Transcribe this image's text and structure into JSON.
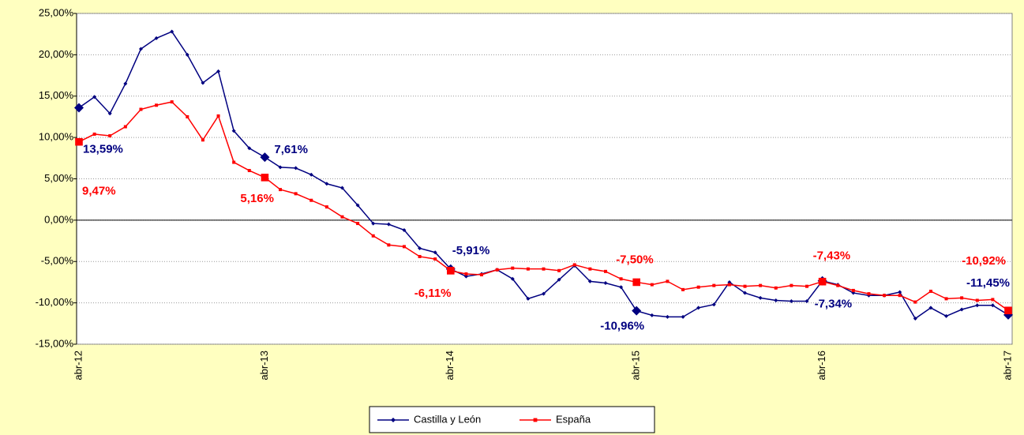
{
  "chart_data": {
    "type": "line",
    "categories": [
      "abr-12",
      null,
      null,
      null,
      null,
      null,
      null,
      null,
      null,
      null,
      null,
      null,
      "abr-13",
      null,
      null,
      null,
      null,
      null,
      null,
      null,
      null,
      null,
      null,
      null,
      "abr-14",
      null,
      null,
      null,
      null,
      null,
      null,
      null,
      null,
      null,
      null,
      null,
      "abr-15",
      null,
      null,
      null,
      null,
      null,
      null,
      null,
      null,
      null,
      null,
      null,
      "abr-16",
      null,
      null,
      null,
      null,
      null,
      null,
      null,
      null,
      null,
      null,
      null,
      "abr-17"
    ],
    "series": [
      {
        "name": "Castilla y León",
        "color": "#000080",
        "values": [
          13.59,
          14.9,
          12.9,
          16.5,
          20.7,
          22.0,
          22.8,
          20.0,
          16.6,
          18.0,
          10.8,
          8.7,
          7.61,
          6.4,
          6.3,
          5.5,
          4.4,
          3.9,
          1.8,
          -0.4,
          -0.5,
          -1.2,
          -3.4,
          -3.9,
          -5.91,
          -6.8,
          -6.5,
          -6.0,
          -7.1,
          -9.5,
          -8.9,
          -7.2,
          -5.5,
          -7.4,
          -7.6,
          -8.1,
          -10.96,
          -11.5,
          -11.7,
          -11.7,
          -10.6,
          -10.2,
          -7.5,
          -8.8,
          -9.4,
          -9.7,
          -9.8,
          -9.8,
          -7.34,
          -7.8,
          -8.8,
          -9.1,
          -9.1,
          -8.7,
          -11.9,
          -10.6,
          -11.6,
          -10.8,
          -10.3,
          -10.3,
          -11.45
        ],
        "value_labels": [
          "13,59%",
          null,
          null,
          null,
          null,
          null,
          null,
          null,
          null,
          null,
          null,
          null,
          "7,61%",
          null,
          null,
          null,
          null,
          null,
          null,
          null,
          null,
          null,
          null,
          null,
          "-5,91%",
          null,
          null,
          null,
          null,
          null,
          null,
          null,
          null,
          null,
          null,
          null,
          "-10,96%",
          null,
          null,
          null,
          null,
          null,
          null,
          null,
          null,
          null,
          null,
          null,
          "-7,34%",
          null,
          null,
          null,
          null,
          null,
          null,
          null,
          null,
          null,
          null,
          null,
          "-11,45%"
        ]
      },
      {
        "name": "España",
        "color": "#ff0000",
        "values": [
          9.47,
          10.4,
          10.2,
          11.3,
          13.4,
          13.9,
          14.3,
          12.5,
          9.7,
          12.6,
          7.0,
          6.0,
          5.16,
          3.7,
          3.2,
          2.4,
          1.6,
          0.4,
          -0.4,
          -1.9,
          -3.0,
          -3.2,
          -4.4,
          -4.7,
          -6.11,
          -6.5,
          -6.6,
          -6.0,
          -5.8,
          -5.9,
          -5.9,
          -6.1,
          -5.4,
          -5.9,
          -6.2,
          -7.1,
          -7.5,
          -7.8,
          -7.4,
          -8.4,
          -8.1,
          -7.9,
          -7.8,
          -8.0,
          -7.9,
          -8.2,
          -7.9,
          -8.0,
          -7.43,
          -7.9,
          -8.5,
          -8.9,
          -9.1,
          -9.1,
          -9.9,
          -8.6,
          -9.5,
          -9.4,
          -9.7,
          -9.6,
          -10.92
        ],
        "value_labels": [
          "9,47%",
          null,
          null,
          null,
          null,
          null,
          null,
          null,
          null,
          null,
          null,
          null,
          "5,16%",
          null,
          null,
          null,
          null,
          null,
          null,
          null,
          null,
          null,
          null,
          null,
          "-6,11%",
          null,
          null,
          null,
          null,
          null,
          null,
          null,
          null,
          null,
          null,
          null,
          "-7,50%",
          null,
          null,
          null,
          null,
          null,
          null,
          null,
          null,
          null,
          null,
          null,
          "-7,43%",
          null,
          null,
          null,
          null,
          null,
          null,
          null,
          null,
          null,
          null,
          null,
          "-10,92%"
        ]
      }
    ],
    "ylim": [
      -15,
      25
    ],
    "yticks": [
      {
        "value": -15,
        "label": "-15,00%"
      },
      {
        "value": -10,
        "label": "-10,00%"
      },
      {
        "value": -5,
        "label": "-5,00%"
      },
      {
        "value": 0,
        "label": "0,00%"
      },
      {
        "value": 5,
        "label": "5,00%"
      },
      {
        "value": 10,
        "label": "10,00%"
      },
      {
        "value": 15,
        "label": "15,00%"
      },
      {
        "value": 20,
        "label": "20,00%"
      },
      {
        "value": 25,
        "label": "25,00%"
      }
    ],
    "grid": true,
    "legend": "bottom"
  }
}
